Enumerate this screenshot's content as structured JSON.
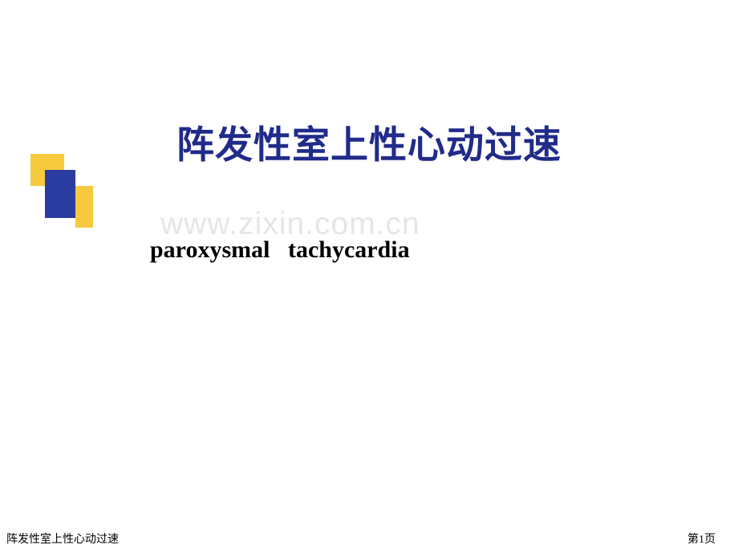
{
  "slide": {
    "title_cn": "阵发性室上性心动过速",
    "subtitle_en": "paroxysmal   tachycardia",
    "watermark": "www.zixin.com.cn",
    "footer_left": "阵发性室上性心动过速",
    "footer_right": "第1页"
  },
  "colors": {
    "title": "#202b8a",
    "subtitle": "#000000",
    "watermark": "#e6e6e6",
    "deco_yellow": "#f7c93f",
    "deco_blue": "#2b3ca0",
    "background": "#ffffff"
  },
  "typography": {
    "title_fontsize": 47,
    "subtitle_fontsize": 30,
    "watermark_fontsize": 39,
    "footer_fontsize": 14
  }
}
